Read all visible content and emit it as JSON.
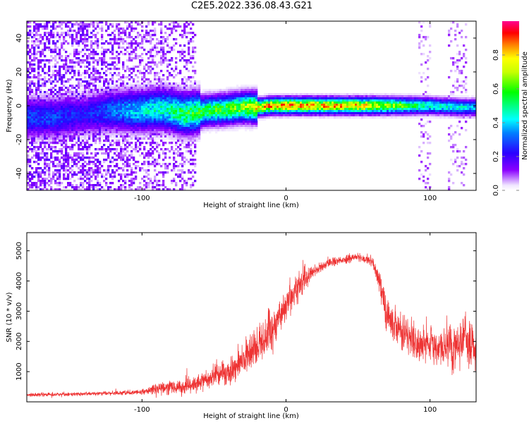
{
  "title": "C2E5.2022.336.08.43.G21",
  "chart_data": [
    {
      "type": "heatmap",
      "title": "C2E5.2022.336.08.43.G21",
      "xlabel": "Height of straight line (km)",
      "ylabel": "Frequency (Hz)",
      "xlim": [
        -180,
        132
      ],
      "ylim": [
        -50,
        50
      ],
      "x_ticks": [
        -100,
        0,
        100
      ],
      "x_tick_labels": [
        "-100",
        "0",
        "100"
      ],
      "y_ticks": [
        -40,
        -20,
        0,
        20,
        40
      ],
      "y_tick_labels": [
        "-40",
        "-20",
        "0",
        "20",
        "40"
      ],
      "colorbar": {
        "label": "Normalized spectral amplitude",
        "range": [
          0,
          1
        ],
        "ticks": [
          0,
          0.2,
          0.4,
          0.6,
          0.8
        ],
        "tick_labels": [
          "0.0",
          "0.2",
          "0.4",
          "0.6",
          "0.8"
        ],
        "colormap": "rainbow (white - purple - blue - cyan - green - yellow - orange - red - magenta)"
      },
      "noise_region_x": [
        -180,
        -62
      ],
      "signal_track": {
        "x": [
          -160,
          -140,
          -120,
          -100,
          -85,
          -70,
          -55,
          -40,
          -30,
          -20,
          -10,
          0,
          20,
          40,
          60,
          80,
          100,
          120,
          132
        ],
        "frequency": [
          -7,
          -5,
          -3,
          -3,
          -2,
          -5,
          -3,
          -2,
          -1,
          -1,
          0,
          0,
          0,
          0,
          0,
          0,
          0,
          -1,
          -1
        ],
        "peak_amplitude": [
          0.3,
          0.25,
          0.35,
          0.45,
          0.5,
          0.6,
          0.6,
          0.65,
          0.7,
          0.8,
          0.9,
          0.9,
          0.85,
          0.85,
          0.8,
          0.65,
          0.5,
          0.45,
          0.4
        ]
      }
    },
    {
      "type": "line",
      "xlabel": "Height of straight line (km)",
      "ylabel": "SNR (10 * v/v)",
      "xlim": [
        -180,
        132
      ],
      "ylim": [
        0,
        5600
      ],
      "x_ticks": [
        -100,
        0,
        100
      ],
      "x_tick_labels": [
        "-100",
        "0",
        "100"
      ],
      "y_ticks": [
        1000,
        2000,
        3000,
        4000,
        5000
      ],
      "y_tick_labels": [
        "1000",
        "2000",
        "3000",
        "4000",
        "5000"
      ],
      "color": "#ee3333",
      "envelope": {
        "x": [
          -180,
          -150,
          -120,
          -100,
          -90,
          -80,
          -70,
          -60,
          -50,
          -40,
          -30,
          -20,
          -10,
          0,
          10,
          20,
          30,
          40,
          50,
          60,
          65,
          70,
          80,
          90,
          100,
          110,
          120,
          125,
          132
        ],
        "mean": [
          230,
          250,
          290,
          330,
          430,
          470,
          480,
          650,
          900,
          1000,
          1400,
          1800,
          2400,
          3200,
          3900,
          4350,
          4600,
          4700,
          4800,
          4650,
          4000,
          2900,
          2300,
          2000,
          1800,
          1800,
          1900,
          2200,
          1600
        ],
        "spread": [
          90,
          90,
          100,
          120,
          250,
          350,
          400,
          450,
          550,
          600,
          750,
          850,
          1000,
          800,
          750,
          250,
          200,
          200,
          200,
          250,
          600,
          800,
          850,
          850,
          900,
          900,
          1100,
          1300,
          900
        ]
      }
    }
  ]
}
